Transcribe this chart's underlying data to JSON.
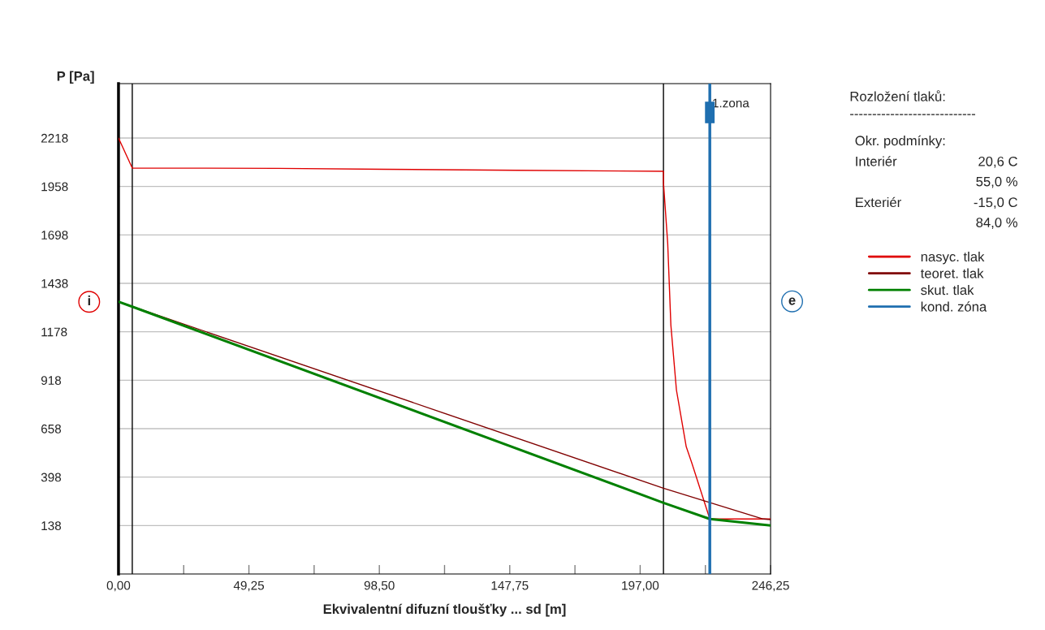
{
  "chart_data": {
    "type": "line",
    "xlabel": "Ekvivalentní difuzní tloušťky ... sd [m]",
    "ylabel": "P [Pa]",
    "xlim": [
      0,
      246.25
    ],
    "ylim": [
      -122,
      2510
    ],
    "xticks": [
      {
        "value": 0,
        "label": "0,00"
      },
      {
        "value": 24.625,
        "label": null
      },
      {
        "value": 49.25,
        "label": "49,25"
      },
      {
        "value": 73.875,
        "label": null
      },
      {
        "value": 98.5,
        "label": "98,50"
      },
      {
        "value": 123.125,
        "label": null
      },
      {
        "value": 147.75,
        "label": "147,75"
      },
      {
        "value": 172.375,
        "label": null
      },
      {
        "value": 197.0,
        "label": "197,00"
      },
      {
        "value": 221.625,
        "label": null
      },
      {
        "value": 246.25,
        "label": "246,25"
      }
    ],
    "yticks": [
      138,
      398,
      658,
      918,
      1178,
      1438,
      1698,
      1958,
      2218
    ],
    "grid": "y",
    "legend": "right",
    "marker": "none",
    "line_style": "solid",
    "series": [
      {
        "name": "nasyc. tlak",
        "color": "#e00000",
        "x": [
          0,
          5.2,
          60,
          100,
          150,
          205.8,
          205.8,
          207.4,
          208.6,
          210.7,
          214.4,
          216.5,
          223.3,
          246.25
        ],
        "values": [
          2218,
          2057,
          2055,
          2050,
          2045,
          2039,
          1979,
          1652,
          1213,
          865,
          561,
          474,
          173,
          173
        ]
      },
      {
        "name": "teoret. tlak",
        "color": "#800000",
        "x": [
          0,
          205.8,
          243.5,
          246.25
        ],
        "values": [
          1339,
          338,
          173,
          170
        ]
      },
      {
        "name": "skut. tlak",
        "color": "#008000",
        "x": [
          0,
          5.2,
          205.8,
          223.3,
          246.25
        ],
        "values": [
          1339,
          1313,
          260,
          173,
          138
        ]
      },
      {
        "name": "kond. zóna",
        "color": "#1f6fb0",
        "x": [
          223.3,
          223.3
        ],
        "values": [
          -122,
          2510
        ]
      }
    ],
    "ref_lines": [
      {
        "axis": "x",
        "value": 5.2,
        "color": "#000000"
      },
      {
        "axis": "x",
        "value": 205.8,
        "color": "#000000"
      }
    ],
    "annotations": [
      {
        "text": "i",
        "x": 0,
        "y": 1339
      },
      "e",
      {
        "text": "1.zona",
        "x": 223.3,
        "y": 2400
      },
      "Rozložení tlaků:",
      "----------------------------",
      "Okr. podmínky:",
      "Interiér",
      "20,6 C",
      "55,0 %",
      "Exteriér",
      "-15,0 C",
      "84,0 %"
    ]
  }
}
